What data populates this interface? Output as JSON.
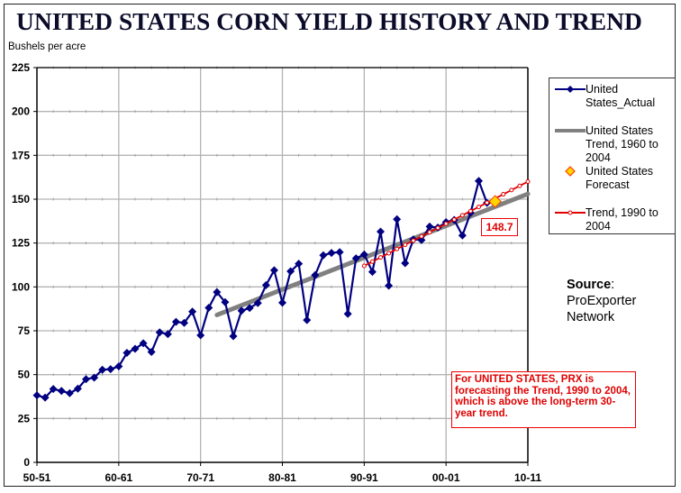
{
  "chart_data": {
    "type": "line",
    "title": "UNITED STATES CORN YIELD HISTORY AND TREND",
    "ylabel": "Bushels per acre",
    "xlabel": "",
    "ylim": [
      0,
      225
    ],
    "xlim": [
      1950,
      2010
    ],
    "yticks": [
      "0",
      "25",
      "50",
      "75",
      "100",
      "125",
      "150",
      "175",
      "200",
      "225"
    ],
    "ytick_values": [
      0,
      25,
      50,
      75,
      100,
      125,
      150,
      175,
      200,
      225
    ],
    "xticks": [
      "50-51",
      "60-61",
      "70-71",
      "80-81",
      "90-91",
      "00-01",
      "10-11"
    ],
    "xtick_values": [
      1950,
      1960,
      1970,
      1980,
      1990,
      2000,
      2010
    ],
    "grid": true,
    "legend_position": "right",
    "series": [
      {
        "name": "United States_Actual",
        "style": "line-diamond",
        "color": "#000080",
        "x": [
          1950,
          1951,
          1952,
          1953,
          1954,
          1955,
          1956,
          1957,
          1958,
          1959,
          1960,
          1961,
          1962,
          1963,
          1964,
          1965,
          1966,
          1967,
          1968,
          1969,
          1970,
          1971,
          1972,
          1973,
          1974,
          1975,
          1976,
          1977,
          1978,
          1979,
          1980,
          1981,
          1982,
          1983,
          1984,
          1985,
          1986,
          1987,
          1988,
          1989,
          1990,
          1991,
          1992,
          1993,
          1994,
          1995,
          1996,
          1997,
          1998,
          1999,
          2000,
          2001,
          2002,
          2003,
          2004,
          2005
        ],
        "values": [
          38.2,
          36.9,
          41.8,
          40.7,
          39.4,
          42.0,
          47.4,
          48.3,
          52.8,
          53.1,
          54.7,
          62.4,
          64.7,
          67.9,
          62.9,
          74.1,
          73.1,
          80.1,
          79.5,
          85.9,
          72.4,
          88.1,
          97.0,
          91.3,
          71.9,
          86.4,
          88.0,
          90.8,
          101.0,
          109.5,
          91.0,
          108.9,
          113.2,
          81.1,
          106.7,
          118.0,
          119.4,
          119.8,
          84.6,
          116.3,
          118.5,
          108.6,
          131.5,
          100.7,
          138.6,
          113.5,
          127.1,
          126.7,
          134.4,
          133.8,
          136.9,
          138.2,
          129.3,
          142.2,
          160.4,
          147.9
        ]
      },
      {
        "name": "United States Trend, 1960 to 2004",
        "style": "line",
        "color": "#808080",
        "x": [
          1972,
          2010
        ],
        "values": [
          84.0,
          153.0
        ]
      },
      {
        "name": "United States Forecast",
        "style": "marker-diamond",
        "color": "#ffd700",
        "edge_color": "#ff4000",
        "x": [
          2006
        ],
        "values": [
          148.7
        ]
      },
      {
        "name": "Trend, 1990 to 2004",
        "style": "line-circle",
        "color": "#e00000",
        "x": [
          1990,
          1991,
          1992,
          1993,
          1994,
          1995,
          1996,
          1997,
          1998,
          1999,
          2000,
          2001,
          2002,
          2003,
          2004,
          2005,
          2006,
          2007,
          2008,
          2009,
          2010
        ],
        "values": [
          112.0,
          114.4,
          116.8,
          119.2,
          121.6,
          124.0,
          126.4,
          128.8,
          131.2,
          133.6,
          136.0,
          138.4,
          140.8,
          143.2,
          145.6,
          148.0,
          150.4,
          152.8,
          155.2,
          157.6,
          160.0
        ]
      }
    ],
    "annotations": [
      {
        "text": "148.7",
        "target": "United States Forecast",
        "color": "#e00000"
      },
      {
        "text": "For UNITED STATES, PRX is forecasting the Trend, 1990 to 2004, which is above the long-term 30-year trend.",
        "color": "#e00000"
      }
    ]
  },
  "header": {
    "title": "UNITED STATES CORN YIELD HISTORY AND TREND",
    "ylabel": "Bushels per acre"
  },
  "legend": {
    "items": [
      {
        "label": "United States_Actual",
        "icon": "blue-line-diamond-icon"
      },
      {
        "label": "United States Trend, 1960 to 2004",
        "icon": "gray-line-icon"
      },
      {
        "label": "United States Forecast",
        "icon": "yellow-diamond-icon"
      },
      {
        "label": "Trend, 1990 to 2004",
        "icon": "red-line-circle-icon"
      }
    ]
  },
  "source": {
    "label": "Source",
    "colon": ":",
    "line1": "ProExporter",
    "line2": "Network"
  },
  "forecast_label": "148.7",
  "note": "For UNITED STATES, PRX is forecasting the Trend, 1990 to 2004, which is above the long-term 30-year trend.",
  "colors": {
    "actual": "#000080",
    "trend_long": "#808080",
    "trend_recent": "#e00000",
    "forecast_fill": "#ffd700",
    "forecast_edge": "#ff4000",
    "title": "#0b0b2a",
    "grid": "#b4b4b4"
  }
}
